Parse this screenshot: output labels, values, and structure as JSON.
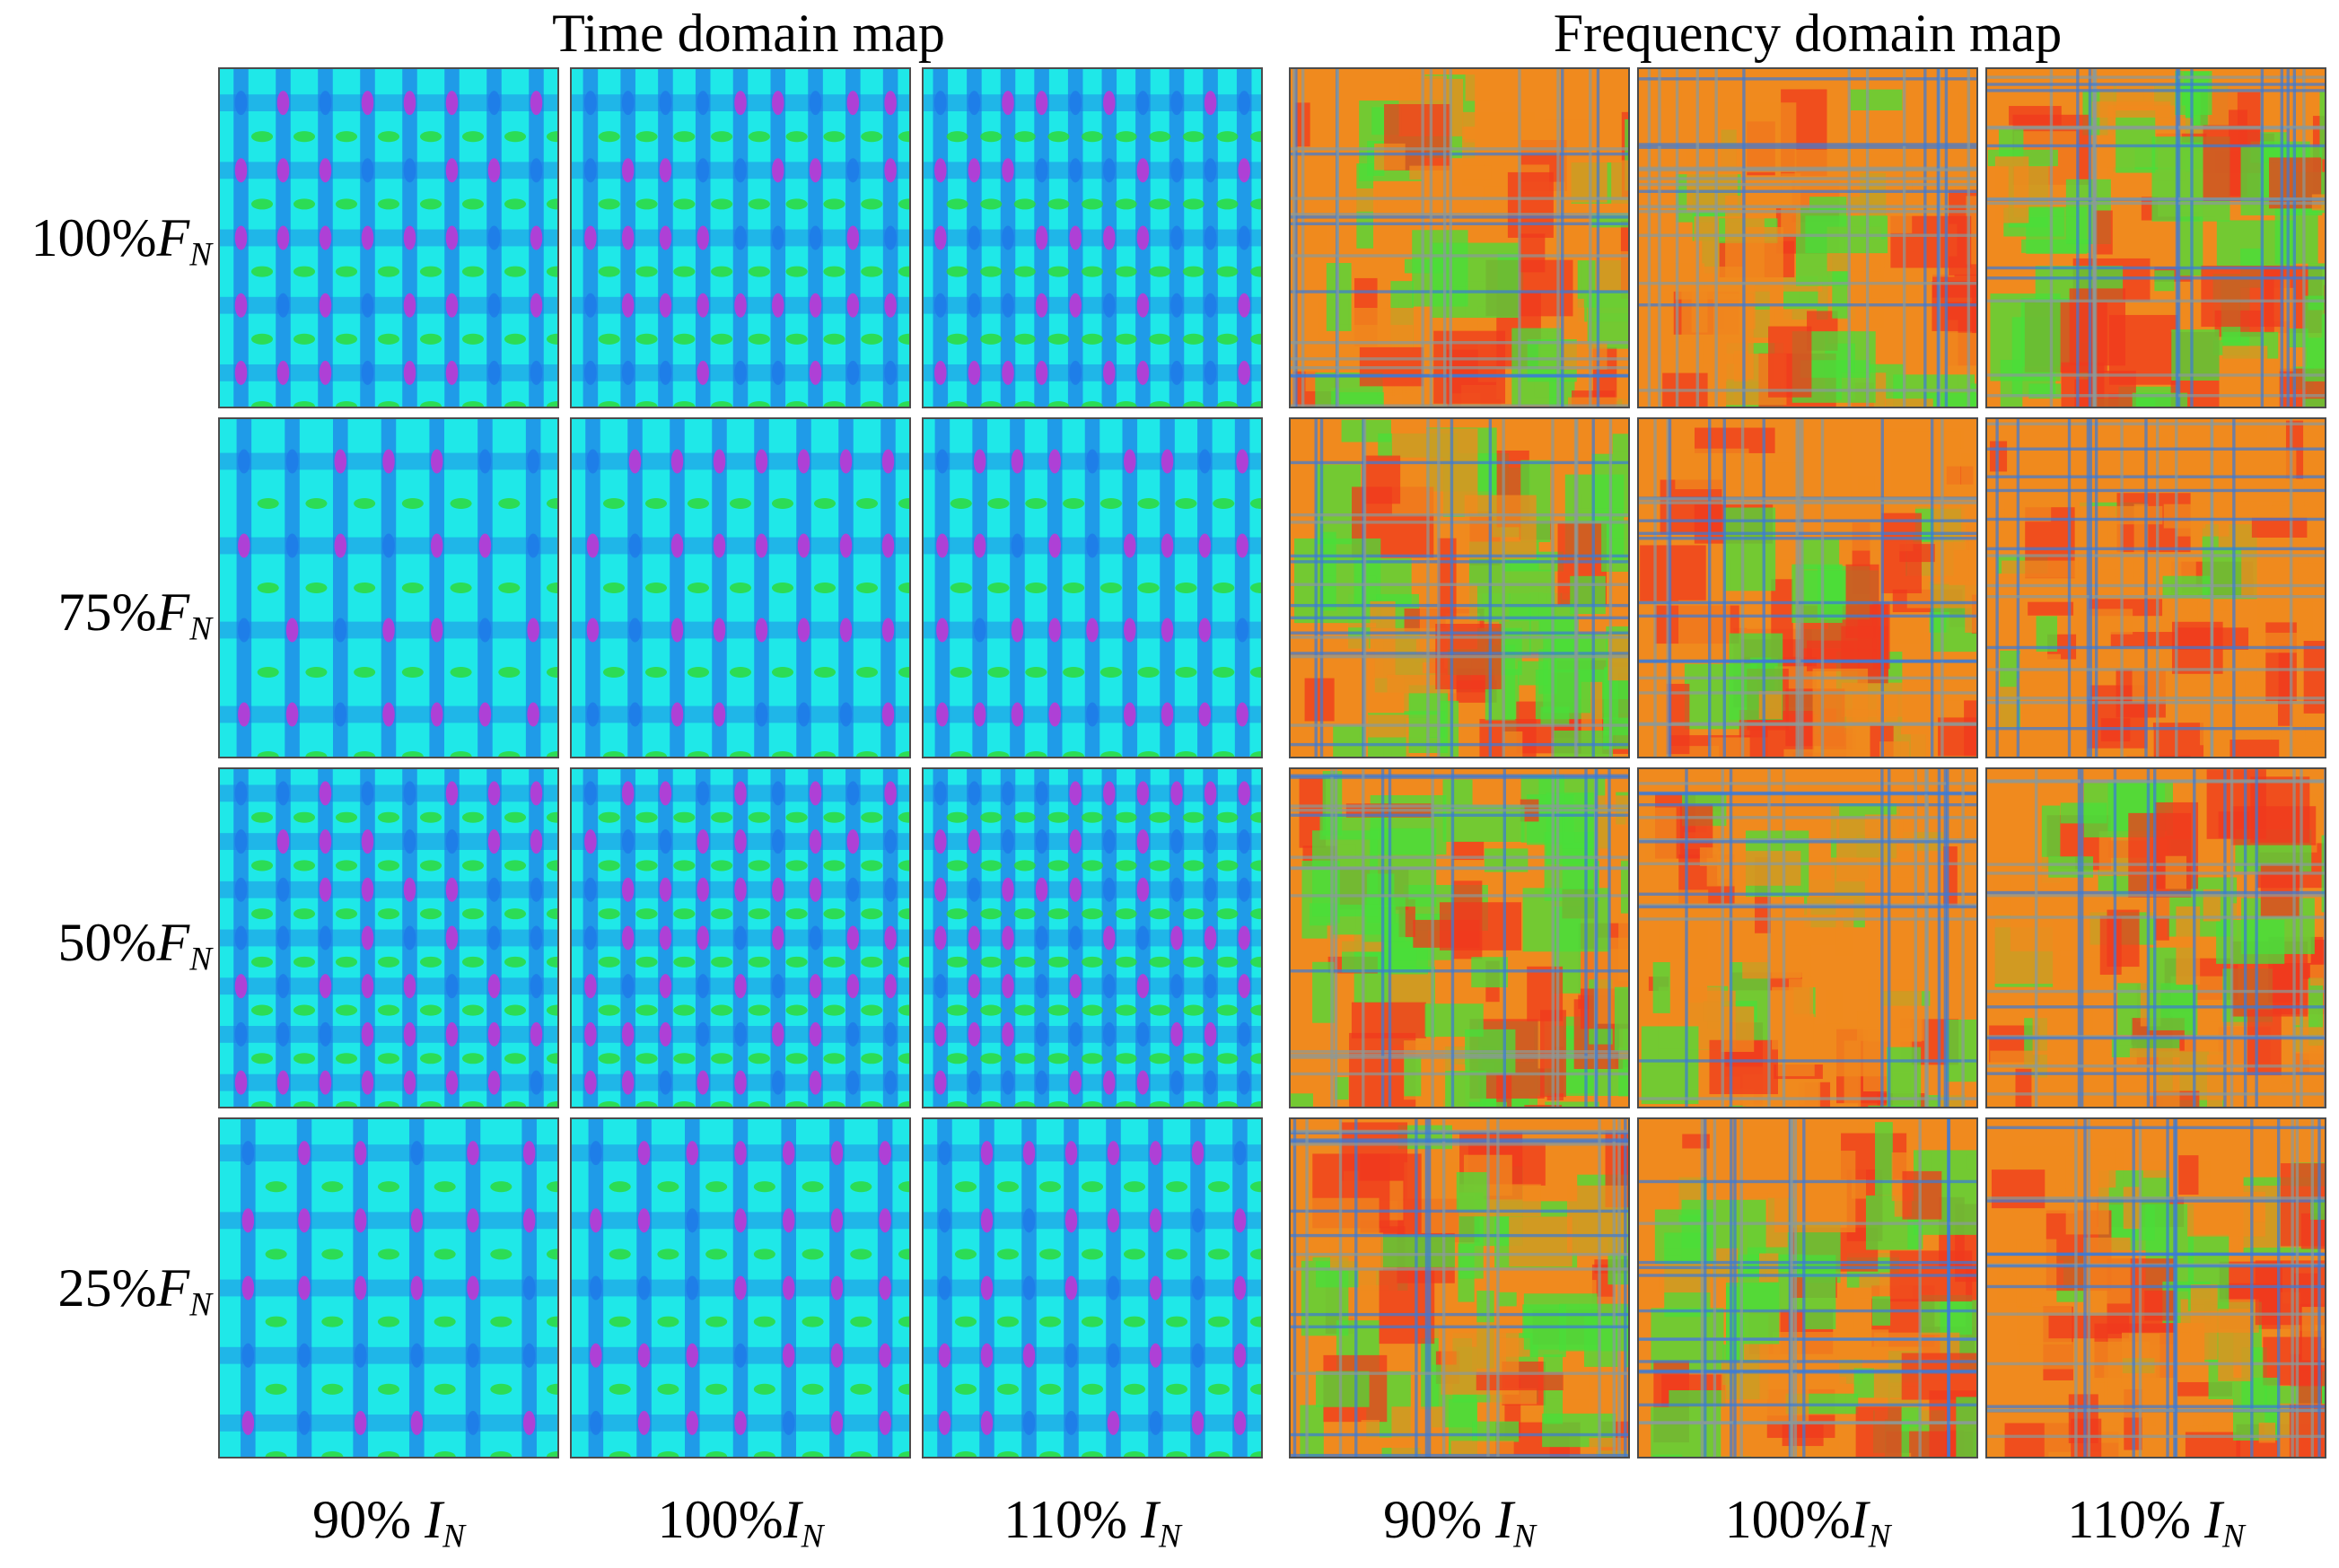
{
  "figure": {
    "time_title": "Time domain map",
    "freq_title": "Frequency domain map",
    "rows": [
      {
        "pct": "100%",
        "sym": "F",
        "sub": "N"
      },
      {
        "pct": "75%",
        "sym": "F",
        "sub": "N"
      },
      {
        "pct": "50%",
        "sym": "F",
        "sub": "N"
      },
      {
        "pct": "25%",
        "sym": "F",
        "sub": "N"
      }
    ],
    "cols": [
      {
        "pct": "90% ",
        "sym": "I",
        "sub": "N"
      },
      {
        "pct": "100%",
        "sym": "I",
        "sub": "N"
      },
      {
        "pct": "110% ",
        "sym": "I",
        "sub": "N"
      },
      {
        "pct": "90% ",
        "sym": "I",
        "sub": "N"
      },
      {
        "pct": "100%",
        "sym": "I",
        "sub": "N"
      },
      {
        "pct": "110% ",
        "sym": "I",
        "sub": "N"
      }
    ]
  },
  "colors": {
    "time_base": "#1fe8e8",
    "time_band": "#1f7be8",
    "time_spot": "#c832d2",
    "time_green": "#2fd82f",
    "freq_base": "#f08a1e",
    "freq_red": "#f03a1e",
    "freq_green": "#4ade3a",
    "freq_blue": "#3a7ad8",
    "freq_grid": "#8a9a9a"
  }
}
